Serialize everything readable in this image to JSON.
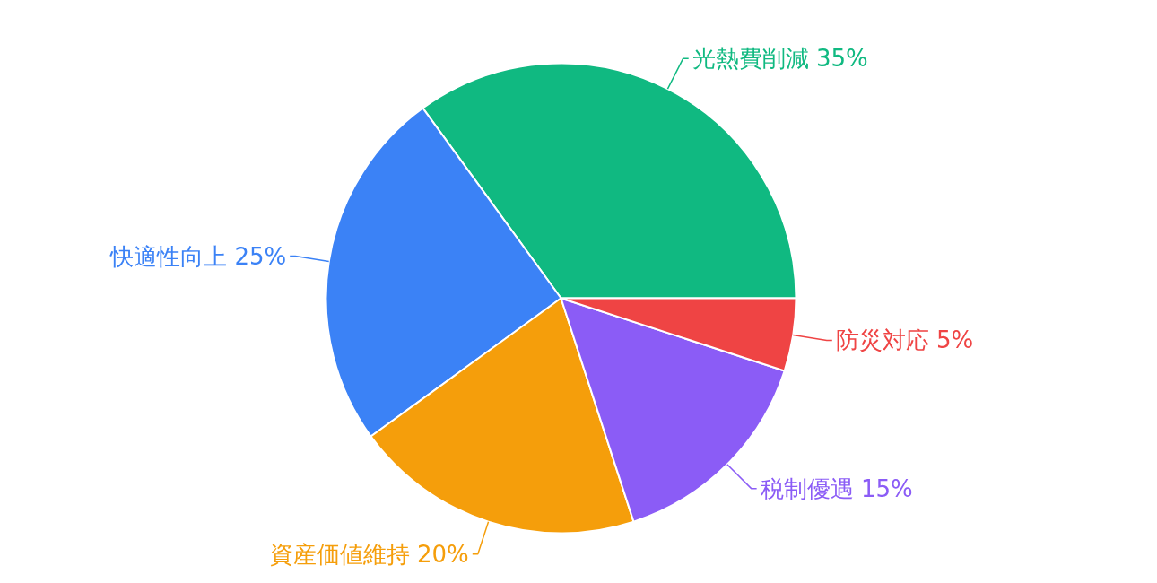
{
  "chart_data": {
    "type": "pie",
    "categories": [
      "光熱費削減",
      "快適性向上",
      "資産価値維持",
      "税制優遇",
      "防災対応"
    ],
    "values": [
      35,
      25,
      20,
      15,
      5
    ],
    "value_labels": [
      "35%",
      "25%",
      "20%",
      "15%",
      "5%"
    ],
    "colors": [
      "#10b981",
      "#3b82f6",
      "#f59e0b",
      "#8b5cf6",
      "#ef4444"
    ],
    "legend": false
  }
}
